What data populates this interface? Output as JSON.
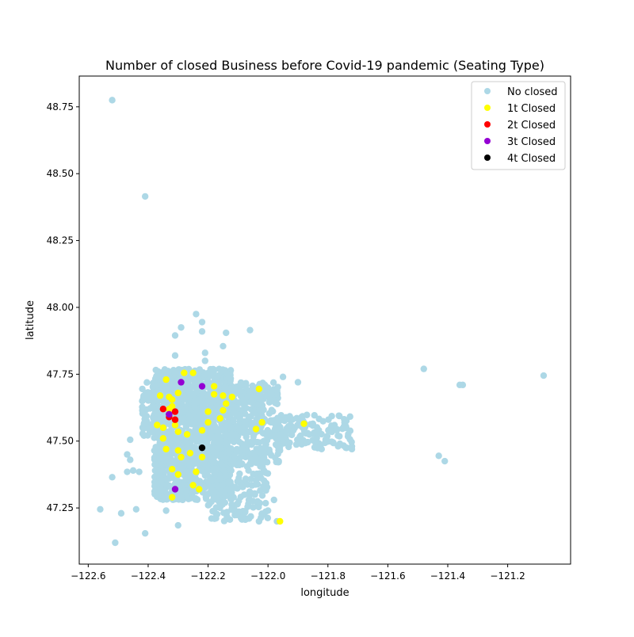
{
  "chart_data": {
    "type": "scatter",
    "title": "Number of closed Business before Covid-19 pandemic (Seating Type)",
    "xlabel": "longitude",
    "ylabel": "latitude",
    "xlim": [
      -122.63,
      -120.99
    ],
    "ylim": [
      47.04,
      48.865
    ],
    "xticks": [
      -122.6,
      -122.4,
      -122.2,
      -122.0,
      -121.8,
      -121.6,
      -121.4,
      -121.2
    ],
    "xtick_labels": [
      "−122.6",
      "−122.4",
      "−122.2",
      "−122.0",
      "−121.8",
      "−121.6",
      "−121.4",
      "−121.2"
    ],
    "yticks": [
      47.25,
      47.5,
      47.75,
      48.0,
      48.25,
      48.5,
      48.75
    ],
    "ytick_labels": [
      "47.25",
      "47.50",
      "47.75",
      "48.00",
      "48.25",
      "48.50",
      "48.75"
    ],
    "grid": false,
    "legend_position": "top-right",
    "series": [
      {
        "name": "No closed",
        "color": "#add8e6",
        "clusters": [
          {
            "x": [
              -122.38,
              -122.25
            ],
            "y": [
              47.28,
              47.77
            ],
            "n": 700
          },
          {
            "x": [
              -122.25,
              -122.12
            ],
            "y": [
              47.28,
              47.77
            ],
            "n": 650
          },
          {
            "x": [
              -122.12,
              -121.96
            ],
            "y": [
              47.42,
              47.72
            ],
            "n": 280
          },
          {
            "x": [
              -122.2,
              -122.0
            ],
            "y": [
              47.2,
              47.42
            ],
            "n": 160
          },
          {
            "x": [
              -121.98,
              -121.72
            ],
            "y": [
              47.47,
              47.6
            ],
            "n": 130
          },
          {
            "x": [
              -122.42,
              -122.36
            ],
            "y": [
              47.52,
              47.72
            ],
            "n": 90
          }
        ],
        "points": [
          {
            "x": -122.52,
            "y": 48.775
          },
          {
            "x": -122.41,
            "y": 48.415
          },
          {
            "x": -122.22,
            "y": 47.945
          },
          {
            "x": -122.22,
            "y": 47.91
          },
          {
            "x": -122.29,
            "y": 47.925
          },
          {
            "x": -122.31,
            "y": 47.895
          },
          {
            "x": -122.24,
            "y": 47.975
          },
          {
            "x": -122.14,
            "y": 47.905
          },
          {
            "x": -122.06,
            "y": 47.915
          },
          {
            "x": -122.15,
            "y": 47.855
          },
          {
            "x": -122.21,
            "y": 47.83
          },
          {
            "x": -122.31,
            "y": 47.82
          },
          {
            "x": -122.21,
            "y": 47.8
          },
          {
            "x": -121.95,
            "y": 47.74
          },
          {
            "x": -121.9,
            "y": 47.72
          },
          {
            "x": -121.48,
            "y": 47.77
          },
          {
            "x": -121.35,
            "y": 47.71
          },
          {
            "x": -121.36,
            "y": 47.71
          },
          {
            "x": -121.08,
            "y": 47.745
          },
          {
            "x": -121.43,
            "y": 47.445
          },
          {
            "x": -121.41,
            "y": 47.425
          },
          {
            "x": -121.72,
            "y": 47.48
          },
          {
            "x": -121.72,
            "y": 47.47
          },
          {
            "x": -122.46,
            "y": 47.505
          },
          {
            "x": -122.47,
            "y": 47.45
          },
          {
            "x": -122.46,
            "y": 47.43
          },
          {
            "x": -122.45,
            "y": 47.39
          },
          {
            "x": -122.47,
            "y": 47.385
          },
          {
            "x": -122.43,
            "y": 47.385
          },
          {
            "x": -122.52,
            "y": 47.365
          },
          {
            "x": -122.56,
            "y": 47.245
          },
          {
            "x": -122.49,
            "y": 47.23
          },
          {
            "x": -122.44,
            "y": 47.245
          },
          {
            "x": -122.51,
            "y": 47.12
          },
          {
            "x": -122.41,
            "y": 47.155
          },
          {
            "x": -122.3,
            "y": 47.185
          },
          {
            "x": -122.34,
            "y": 47.24
          },
          {
            "x": -121.98,
            "y": 47.28
          },
          {
            "x": -121.97,
            "y": 47.2
          },
          {
            "x": -122.03,
            "y": 47.2
          },
          {
            "x": -122.0,
            "y": 47.24
          },
          {
            "x": -122.07,
            "y": 47.21
          },
          {
            "x": -121.76,
            "y": 47.49
          },
          {
            "x": -121.74,
            "y": 47.475
          }
        ]
      },
      {
        "name": "1t Closed",
        "color": "#ffff00",
        "points": [
          {
            "x": -122.34,
            "y": 47.73
          },
          {
            "x": -122.28,
            "y": 47.755
          },
          {
            "x": -122.25,
            "y": 47.755
          },
          {
            "x": -122.3,
            "y": 47.68
          },
          {
            "x": -122.33,
            "y": 47.665
          },
          {
            "x": -122.36,
            "y": 47.67
          },
          {
            "x": -122.32,
            "y": 47.655
          },
          {
            "x": -122.37,
            "y": 47.56
          },
          {
            "x": -122.33,
            "y": 47.62
          },
          {
            "x": -122.32,
            "y": 47.63
          },
          {
            "x": -122.35,
            "y": 47.55
          },
          {
            "x": -122.31,
            "y": 47.56
          },
          {
            "x": -122.35,
            "y": 47.51
          },
          {
            "x": -122.3,
            "y": 47.535
          },
          {
            "x": -122.27,
            "y": 47.525
          },
          {
            "x": -122.34,
            "y": 47.47
          },
          {
            "x": -122.3,
            "y": 47.465
          },
          {
            "x": -122.26,
            "y": 47.455
          },
          {
            "x": -122.29,
            "y": 47.44
          },
          {
            "x": -122.22,
            "y": 47.44
          },
          {
            "x": -122.32,
            "y": 47.395
          },
          {
            "x": -122.3,
            "y": 47.375
          },
          {
            "x": -122.24,
            "y": 47.385
          },
          {
            "x": -122.25,
            "y": 47.335
          },
          {
            "x": -122.23,
            "y": 47.32
          },
          {
            "x": -122.32,
            "y": 47.29
          },
          {
            "x": -122.18,
            "y": 47.705
          },
          {
            "x": -122.18,
            "y": 47.675
          },
          {
            "x": -122.15,
            "y": 47.67
          },
          {
            "x": -122.14,
            "y": 47.64
          },
          {
            "x": -122.15,
            "y": 47.615
          },
          {
            "x": -122.2,
            "y": 47.61
          },
          {
            "x": -122.16,
            "y": 47.585
          },
          {
            "x": -122.2,
            "y": 47.57
          },
          {
            "x": -122.22,
            "y": 47.54
          },
          {
            "x": -122.12,
            "y": 47.665
          },
          {
            "x": -122.03,
            "y": 47.695
          },
          {
            "x": -122.02,
            "y": 47.57
          },
          {
            "x": -122.04,
            "y": 47.545
          },
          {
            "x": -121.88,
            "y": 47.565
          },
          {
            "x": -121.96,
            "y": 47.2
          }
        ]
      },
      {
        "name": "2t Closed",
        "color": "#ff0000",
        "points": [
          {
            "x": -122.35,
            "y": 47.62
          },
          {
            "x": -122.33,
            "y": 47.6
          },
          {
            "x": -122.31,
            "y": 47.61
          },
          {
            "x": -122.33,
            "y": 47.59
          },
          {
            "x": -122.31,
            "y": 47.58
          }
        ]
      },
      {
        "name": "3t Closed",
        "color": "#9400d3",
        "points": [
          {
            "x": -122.29,
            "y": 47.72
          },
          {
            "x": -122.22,
            "y": 47.705
          },
          {
            "x": -122.33,
            "y": 47.6
          },
          {
            "x": -122.31,
            "y": 47.32
          }
        ]
      },
      {
        "name": "4t Closed",
        "color": "#000000",
        "points": [
          {
            "x": -122.22,
            "y": 47.475
          }
        ]
      }
    ]
  }
}
